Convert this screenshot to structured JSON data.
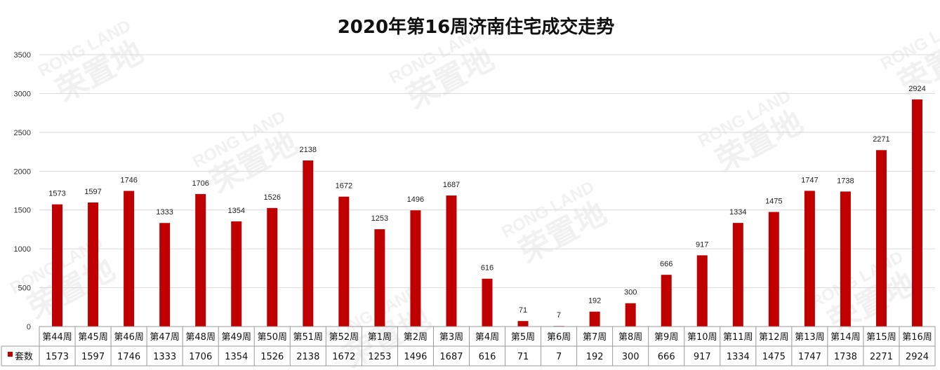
{
  "chart_data": {
    "type": "bar",
    "title": "2020年第16周济南住宅成交走势",
    "categories": [
      "第44周",
      "第45周",
      "第46周",
      "第47周",
      "第48周",
      "第49周",
      "第50周",
      "第51周",
      "第52周",
      "第1周",
      "第2周",
      "第3周",
      "第4周",
      "第5周",
      "第6周",
      "第7周",
      "第8周",
      "第9周",
      "第10周",
      "第11周",
      "第12周",
      "第13周",
      "第14周",
      "第15周",
      "第16周"
    ],
    "series": [
      {
        "name": "套数",
        "values": [
          1573,
          1597,
          1746,
          1333,
          1706,
          1354,
          1526,
          2138,
          1672,
          1253,
          1496,
          1687,
          616,
          71,
          7,
          192,
          300,
          666,
          917,
          1334,
          1475,
          1747,
          1738,
          2271,
          2924
        ]
      }
    ],
    "ylim": [
      0,
      3500
    ],
    "yticks": [
      0,
      500,
      1000,
      1500,
      2000,
      2500,
      3000,
      3500
    ],
    "grid": true,
    "data_table": true,
    "bar_color": "#c00000"
  },
  "watermark": {
    "latin": "RONG LAND",
    "cjk": "荣置地"
  }
}
